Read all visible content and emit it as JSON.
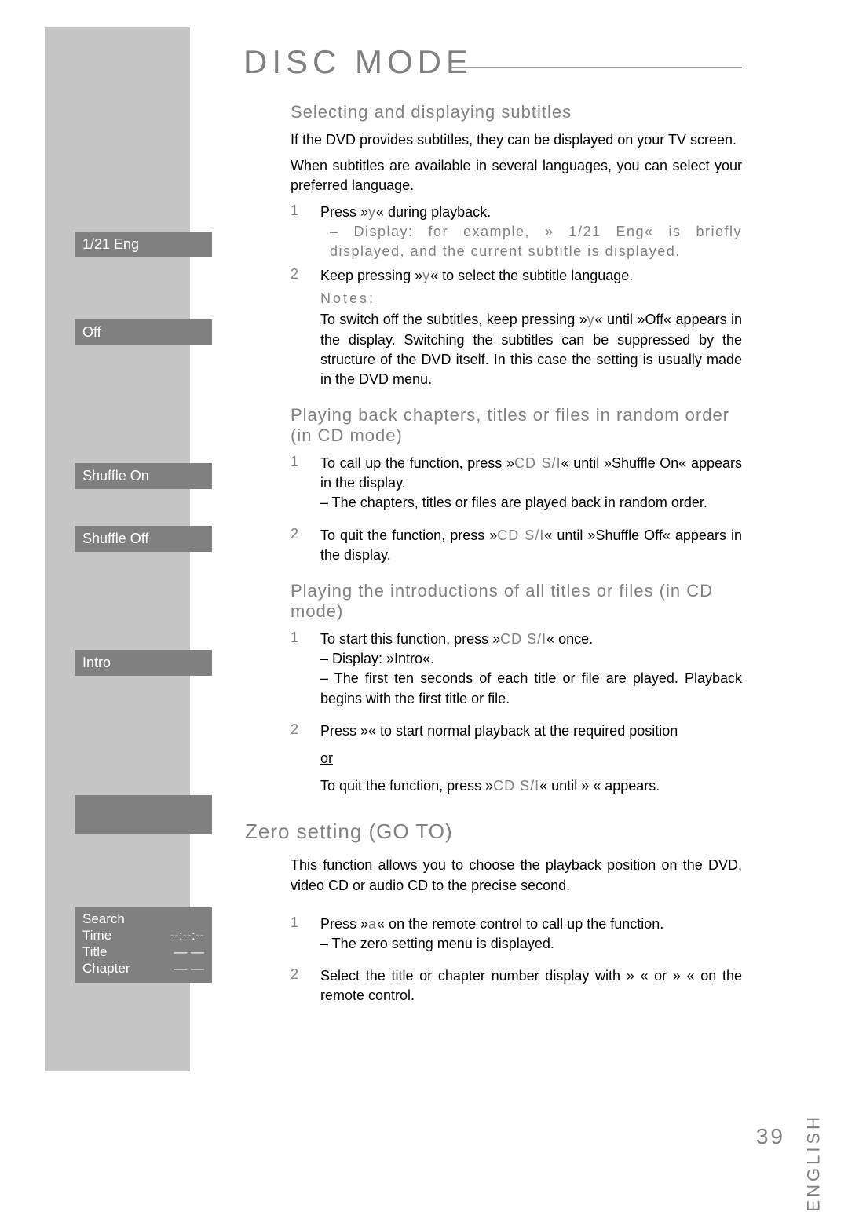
{
  "title": "DISC MODE",
  "sections": {
    "subtitles": {
      "heading": "Selecting and displaying subtitles",
      "p1": "If the DVD provides subtitles, they can be displayed on your TV screen.",
      "p2": "When subtitles are available in several languages, you can select your preferred language.",
      "s1_pre": "Press »",
      "s1_key": "y",
      "s1_post": "« during playback.",
      "s1_sub": "– Display: for example, »    1/21 Eng« is briefly displayed, and the current subtitle is displayed.",
      "s2_pre": "Keep pressing »",
      "s2_key": "y",
      "s2_post": "« to select the subtitle language.",
      "notes_h": "Notes:",
      "notes_pre": "To switch off the subtitles, keep pressing »",
      "notes_key": "y",
      "notes_mid": "« until »",
      "notes_off": "Off",
      "notes_post": "« appears in the display. Switching the subtitles can be suppressed by the structure of the DVD itself. In this case the setting is usually made in the DVD menu."
    },
    "random": {
      "heading": "Playing back chapters, titles or files in random order (in CD mode)",
      "s1_pre": "To call up the function, press »",
      "s1_key": "CD S/I",
      "s1_post": "« until »Shuffle On« appears in the display.",
      "s1_sub": "– The chapters, titles or files are played back in random order.",
      "s2_pre": "To quit the function, press »",
      "s2_key": "CD S/I",
      "s2_post": "« until »Shuffle Off« appears in the display."
    },
    "intro": {
      "heading": "Playing the introductions of all titles or files (in CD mode)",
      "s1_pre": "To start this function, press »",
      "s1_key": "CD S/I",
      "s1_post": "« once.",
      "s1_sub1": "– Display: »Intro«.",
      "s1_sub2": "– The first ten seconds of each title or file are played. Playback begins with the first title or file.",
      "s2_pre": "Press »",
      "s2_post": "« to start normal playback at the required position",
      "or": "or",
      "s2b_pre": "To quit the function, press »",
      "s2b_key": "CD S/I",
      "s2b_post": "« until »   « appears."
    },
    "goto": {
      "heading": "Zero setting (GO TO)",
      "p1": "This function allows you to choose the playback position on the DVD, video CD or audio CD to the precise second.",
      "s1_pre": "Press »",
      "s1_key": "a",
      "s1_post": "« on the remote control to call up the function.",
      "s1_sub": "– The zero setting menu is displayed.",
      "s2": "Select the title or chapter number display with »   « or »   « on the remote control."
    }
  },
  "sidebar": {
    "b1": "1/21 Eng",
    "b2": "Off",
    "b3": "Shuffle On",
    "b4": "Shuffle Off",
    "b5": "Intro",
    "search": {
      "title": "Search",
      "r1_l": "Time",
      "r1_r": "--:--:--",
      "r2_l": "Title",
      "r2_r": "— —",
      "r3_l": "Chapter",
      "r3_r": "— —"
    }
  },
  "lang": "ENGLISH",
  "page": "39"
}
